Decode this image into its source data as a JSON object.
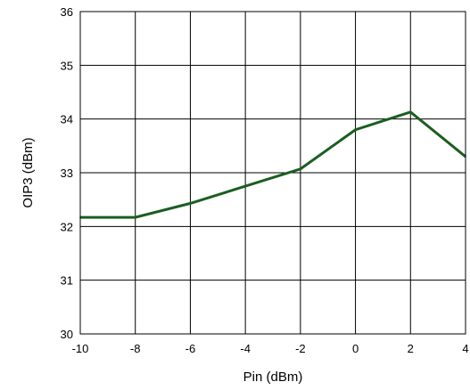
{
  "chart_data": {
    "type": "line",
    "xlabel": "Pin (dBm)",
    "ylabel": "OIP3 (dBm)",
    "xlim": [
      -10,
      4
    ],
    "ylim": [
      30,
      36
    ],
    "xticks": [
      -10,
      -8,
      -6,
      -4,
      -2,
      0,
      2,
      4
    ],
    "yticks": [
      30,
      31,
      32,
      33,
      34,
      35,
      36
    ],
    "grid": true,
    "series": [
      {
        "color": "#1a5e20",
        "x": [
          -10,
          -8,
          -6,
          -4,
          -2,
          0,
          2,
          4
        ],
        "y": [
          32.17,
          32.17,
          32.43,
          32.75,
          33.07,
          33.8,
          34.13,
          33.3
        ]
      }
    ]
  }
}
